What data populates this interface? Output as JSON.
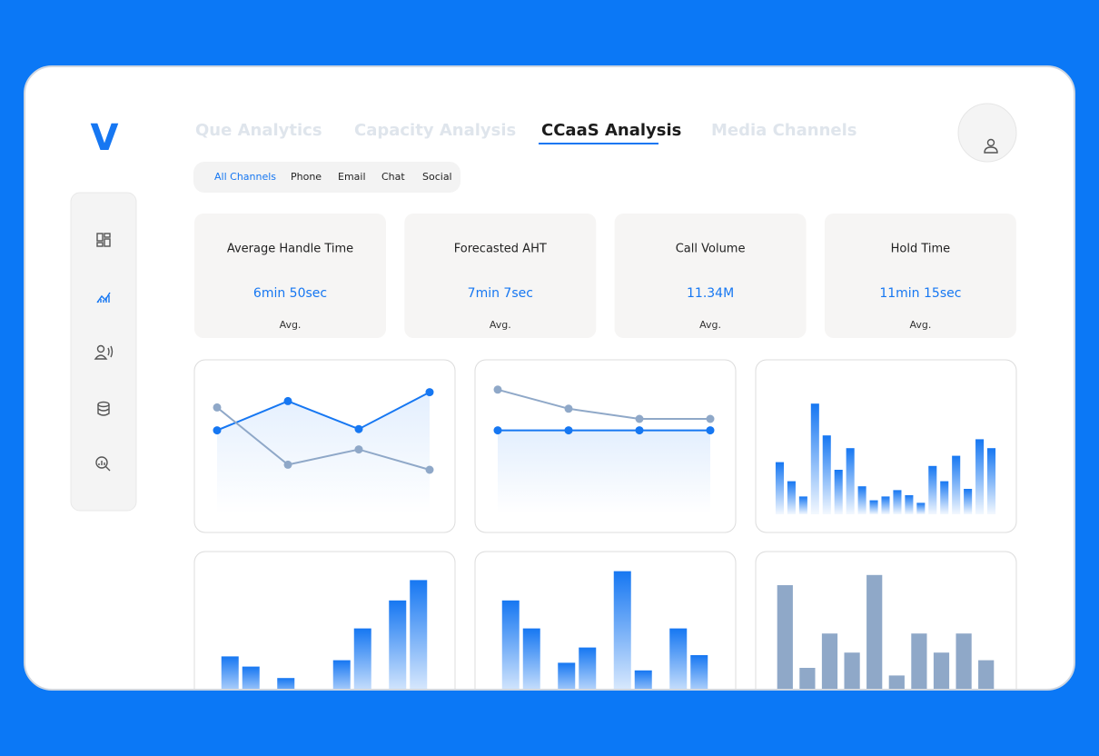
{
  "logo": "V",
  "tabs": [
    {
      "label": "Que Analytics",
      "active": false
    },
    {
      "label": "Capacity Analysis",
      "active": false
    },
    {
      "label": "CCaaS Analysis",
      "active": true
    },
    {
      "label": "Media Channels",
      "active": false
    }
  ],
  "filters": [
    {
      "label": "All Channels",
      "active": true
    },
    {
      "label": "Phone",
      "active": false
    },
    {
      "label": "Email",
      "active": false
    },
    {
      "label": "Chat",
      "active": false
    },
    {
      "label": "Social",
      "active": false
    }
  ],
  "kpis": [
    {
      "title": "Average Handle Time",
      "value": "6min 50sec",
      "note": "Avg."
    },
    {
      "title": "Forecasted AHT",
      "value": "7min 7sec",
      "note": "Avg."
    },
    {
      "title": "Call Volume",
      "value": "11.34M",
      "note": "Avg."
    },
    {
      "title": "Hold Time",
      "value": "11min 15sec",
      "note": "Avg."
    }
  ],
  "charts": [
    {
      "type": "line",
      "series": [
        {
          "color": "#1677f2",
          "values": [
            66,
            89,
            67,
            96
          ],
          "area": true
        },
        {
          "color": "#8fa8c8",
          "values": [
            84,
            39,
            51,
            35
          ],
          "area": false
        }
      ]
    },
    {
      "type": "line",
      "series": [
        {
          "color": "#8fa8c8",
          "values": [
            98,
            83,
            75,
            75
          ],
          "area": false
        },
        {
          "color": "#1677f2",
          "values": [
            66,
            66,
            66,
            66
          ],
          "area": true
        }
      ]
    },
    {
      "type": "bar",
      "gradient": true,
      "series": [
        {
          "color": "#1677f2",
          "values": [
            41,
            26,
            14,
            87,
            62,
            35,
            52,
            22,
            11,
            14,
            19,
            15,
            9,
            38,
            26,
            46,
            20,
            59,
            52
          ]
        }
      ]
    },
    {
      "type": "bar",
      "gradient": true,
      "series": [
        {
          "color": "#1677f2",
          "values": [
            39,
            22,
            36,
            83
          ]
        },
        {
          "color": "#1677f2",
          "values": [
            31,
            0,
            61,
            99
          ]
        }
      ]
    },
    {
      "type": "bar",
      "gradient": true,
      "series": [
        {
          "color": "#1677f2",
          "values": [
            83,
            34,
            106,
            61
          ]
        },
        {
          "color": "#1677f2",
          "values": [
            61,
            46,
            28,
            40
          ]
        }
      ]
    },
    {
      "type": "bar",
      "gradient": false,
      "series": [
        {
          "color": "#8fa8c8",
          "values": [
            95,
            30,
            57,
            42,
            103,
            24,
            57,
            42,
            57,
            36
          ]
        }
      ]
    }
  ]
}
